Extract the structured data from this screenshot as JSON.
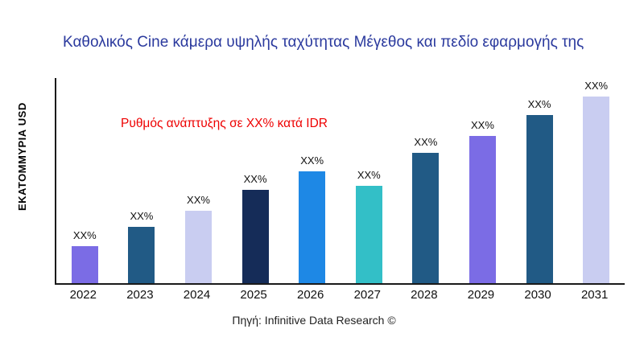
{
  "chart_data": {
    "type": "bar",
    "title": "Καθολικός Cine κάμερα υψηλής ταχύτητας Μέγεθος και πεδίο εφαρμογής της",
    "ylabel": "ΕΚΑΤΟΜΜΥΡΙΑ USD",
    "xlabel": "",
    "annotation": "Ρυθμός ανάπτυξης σε XX% κατά IDR",
    "source": "Πηγή: Infinitive Data Research ©",
    "categories": [
      "2022",
      "2023",
      "2024",
      "2025",
      "2026",
      "2027",
      "2028",
      "2029",
      "2030",
      "2031"
    ],
    "values": [
      20,
      30,
      39,
      50,
      60,
      52,
      70,
      79,
      90,
      100
    ],
    "bar_labels": [
      "XX%",
      "XX%",
      "XX%",
      "XX%",
      "XX%",
      "XX%",
      "XX%",
      "XX%",
      "XX%",
      "XX%"
    ],
    "bar_colors": [
      "#7B6CE5",
      "#215A85",
      "#C9CDF1",
      "#152C58",
      "#1E88E5",
      "#33BFC7",
      "#215A85",
      "#7B6CE5",
      "#215A85",
      "#C9CDF1"
    ],
    "ylim": [
      0,
      110
    ],
    "grid": false,
    "legend": false
  },
  "colors": {
    "title": "#2B3A9E",
    "annotation": "#EE0000",
    "axis": "#1A1A1A",
    "text": "#111111",
    "background": "#FFFFFF"
  }
}
